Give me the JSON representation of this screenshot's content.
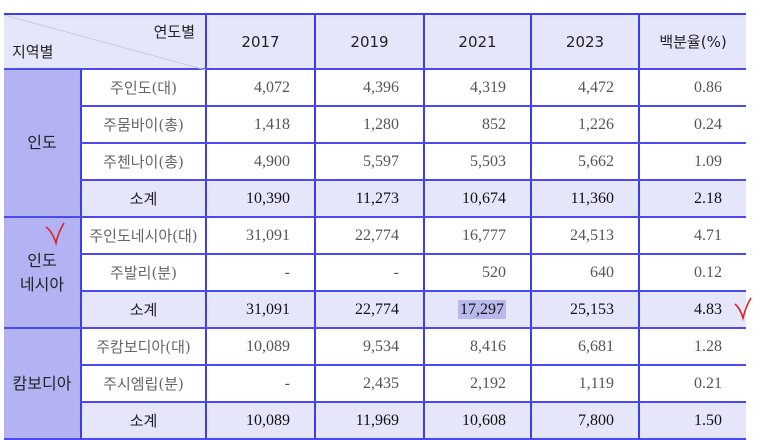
{
  "header": {
    "corner_year": "연도별",
    "corner_region": "지역별",
    "years": [
      "2017",
      "2019",
      "2021",
      "2023"
    ],
    "pct": "백분율(%)"
  },
  "groups": [
    {
      "region": "인도",
      "rows": [
        {
          "name": "주인도(대)",
          "values": [
            "4,072",
            "4,396",
            "4,319",
            "4,472",
            "0.86"
          ]
        },
        {
          "name": "주뭄바이(총)",
          "values": [
            "1,418",
            "1,280",
            "852",
            "1,226",
            "0.24"
          ]
        },
        {
          "name": "주첸나이(총)",
          "values": [
            "4,900",
            "5,597",
            "5,503",
            "5,662",
            "1.09"
          ]
        }
      ],
      "subtotal": {
        "name": "소계",
        "values": [
          "10,390",
          "11,273",
          "10,674",
          "11,360",
          "2.18"
        ]
      }
    },
    {
      "region": "인도 네시아",
      "rows": [
        {
          "name": "주인도네시아(대)",
          "values": [
            "31,091",
            "22,774",
            "16,777",
            "24,513",
            "4.71"
          ]
        },
        {
          "name": "주발리(분)",
          "values": [
            "-",
            "-",
            "520",
            "640",
            "0.12"
          ]
        }
      ],
      "subtotal": {
        "name": "소계",
        "values": [
          "31,091",
          "22,774",
          "17,297",
          "25,153",
          "4.83"
        ]
      }
    },
    {
      "region": "캄보디아",
      "rows": [
        {
          "name": "주캄보디아(대)",
          "values": [
            "10,089",
            "9,534",
            "8,416",
            "6,681",
            "1.28"
          ]
        },
        {
          "name": "주시엠립(분)",
          "values": [
            "-",
            "2,435",
            "2,192",
            "1,119",
            "0.21"
          ]
        }
      ],
      "subtotal": {
        "name": "소계",
        "values": [
          "10,089",
          "11,969",
          "10,608",
          "7,800",
          "1.50"
        ]
      }
    }
  ],
  "colors": {
    "line": "#3c3cf0",
    "header_bg": "#e6e6fb",
    "region_bg": "#b3b3f3",
    "annotation": "#e02020"
  }
}
